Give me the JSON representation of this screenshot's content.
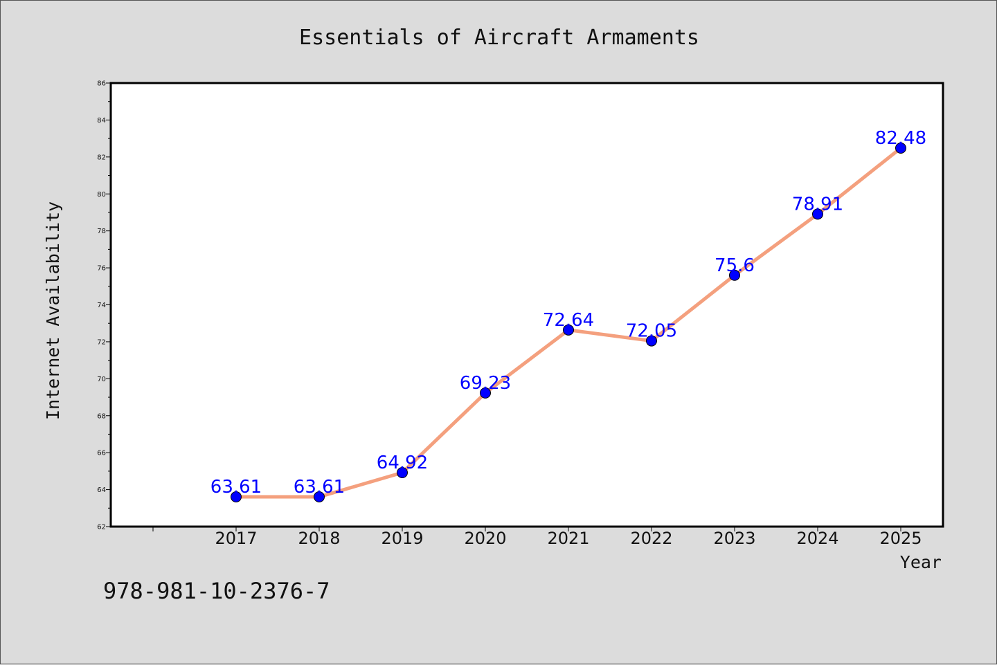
{
  "chart_data": {
    "type": "line",
    "title": "Essentials of Aircraft Armaments",
    "xlabel": "Year",
    "ylabel": "Internet Availability",
    "categories": [
      "2017",
      "2018",
      "2019",
      "2020",
      "2021",
      "2022",
      "2023",
      "2024",
      "2025"
    ],
    "series": [
      {
        "values": [
          63.61,
          63.61,
          64.92,
          69.23,
          72.64,
          72.05,
          75.6,
          78.91,
          82.48
        ],
        "data_labels": [
          "63.61",
          "63.61",
          "64.92",
          "69.23",
          "72.64",
          "72.05",
          "75.6",
          "78.91",
          "82.48"
        ],
        "line_color": "#f4a07e",
        "marker_color": "#0000ff"
      }
    ],
    "ylim": [
      62,
      86
    ],
    "yticks": [
      "62",
      "64",
      "66",
      "68",
      "70",
      "72",
      "74",
      "76",
      "78",
      "80",
      "82",
      "84",
      "86"
    ],
    "grid": false,
    "legend": "none"
  },
  "footer_text": "978-981-10-2376-7",
  "colors": {
    "background": "#dcdcdc",
    "plot_area": "#ffffff",
    "line": "#f4a07e",
    "marker": "#0000ff",
    "data_label": "#0000ff"
  }
}
